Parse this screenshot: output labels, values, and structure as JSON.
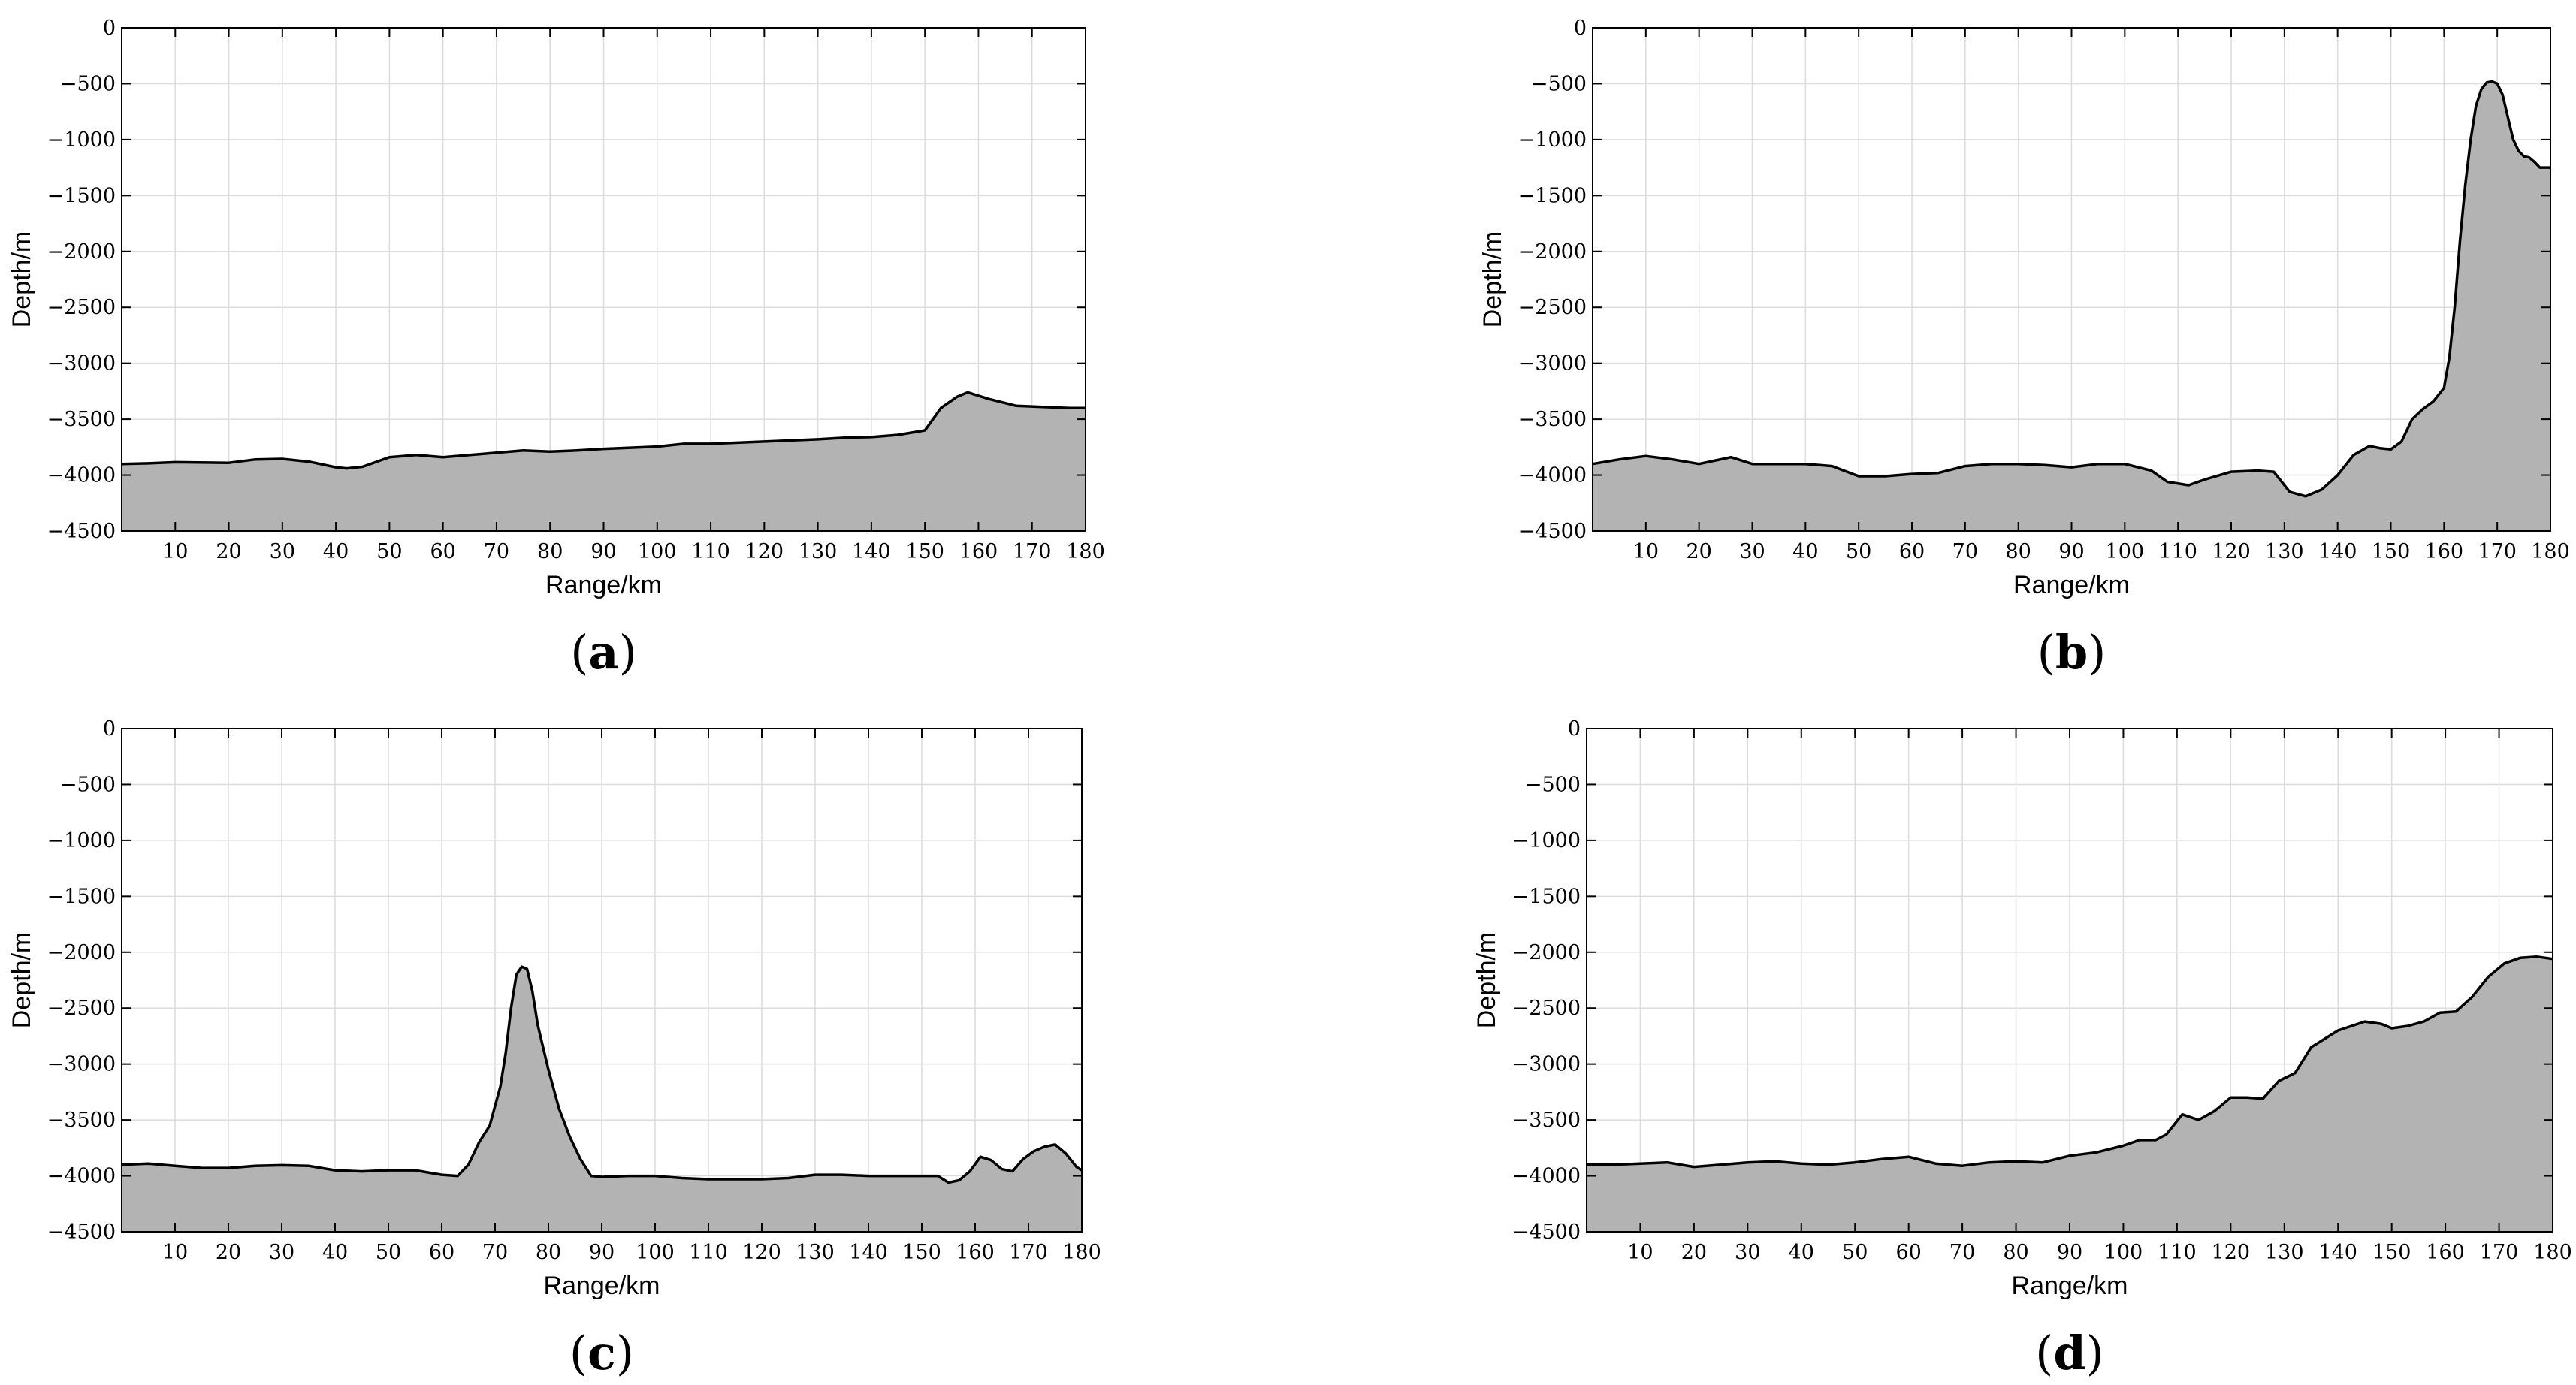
{
  "chart_data": [
    {
      "type": "area",
      "panel_label": "a",
      "xlabel": "Range/km",
      "ylabel": "Depth/m",
      "xlim": [
        0,
        180
      ],
      "ylim": [
        -4500,
        0
      ],
      "xticks": [
        10,
        20,
        30,
        40,
        50,
        60,
        70,
        80,
        90,
        100,
        110,
        120,
        130,
        140,
        150,
        160,
        170,
        180
      ],
      "yticks": [
        0,
        -500,
        -1000,
        -1500,
        -2000,
        -2500,
        -3000,
        -3500,
        -4000,
        -4500
      ],
      "grid": true,
      "x": [
        0,
        5,
        10,
        20,
        25,
        30,
        35,
        40,
        42,
        45,
        50,
        55,
        60,
        65,
        70,
        75,
        80,
        85,
        90,
        95,
        100,
        105,
        110,
        115,
        120,
        125,
        130,
        135,
        140,
        145,
        150,
        153,
        156,
        158,
        162,
        167,
        172,
        177,
        180
      ],
      "y": [
        -3900,
        -3895,
        -3885,
        -3890,
        -3860,
        -3855,
        -3880,
        -3930,
        -3940,
        -3925,
        -3840,
        -3820,
        -3840,
        -3820,
        -3800,
        -3780,
        -3790,
        -3780,
        -3765,
        -3755,
        -3745,
        -3720,
        -3720,
        -3710,
        -3700,
        -3690,
        -3680,
        -3665,
        -3660,
        -3640,
        -3600,
        -3400,
        -3300,
        -3260,
        -3320,
        -3380,
        -3390,
        -3400,
        -3400
      ]
    },
    {
      "type": "area",
      "panel_label": "b",
      "xlabel": "Range/km",
      "ylabel": "Depth/m",
      "xlim": [
        0,
        180
      ],
      "ylim": [
        -4500,
        0
      ],
      "xticks": [
        10,
        20,
        30,
        40,
        50,
        60,
        70,
        80,
        90,
        100,
        110,
        120,
        130,
        140,
        150,
        160,
        170,
        180
      ],
      "yticks": [
        0,
        -500,
        -1000,
        -1500,
        -2000,
        -2500,
        -3000,
        -3500,
        -4000,
        -4500
      ],
      "grid": true,
      "x": [
        0,
        5,
        10,
        15,
        20,
        26,
        30,
        35,
        40,
        45,
        50,
        55,
        60,
        65,
        70,
        75,
        80,
        85,
        90,
        95,
        100,
        105,
        108,
        112,
        115,
        120,
        125,
        128,
        131,
        134,
        137,
        140,
        143,
        146,
        148,
        150,
        152,
        154,
        156,
        158,
        160,
        161,
        162,
        163,
        164,
        165,
        166,
        167,
        168,
        169,
        170,
        171,
        172,
        173,
        174,
        175,
        176,
        177,
        178,
        180
      ],
      "y": [
        -3900,
        -3860,
        -3830,
        -3860,
        -3900,
        -3840,
        -3900,
        -3900,
        -3900,
        -3920,
        -4010,
        -4010,
        -3990,
        -3980,
        -3920,
        -3900,
        -3900,
        -3910,
        -3930,
        -3900,
        -3900,
        -3960,
        -4060,
        -4090,
        -4040,
        -3970,
        -3960,
        -3970,
        -4150,
        -4190,
        -4130,
        -4000,
        -3820,
        -3740,
        -3760,
        -3770,
        -3700,
        -3500,
        -3410,
        -3340,
        -3220,
        -2950,
        -2500,
        -1900,
        -1400,
        -1000,
        -700,
        -550,
        -490,
        -480,
        -500,
        -600,
        -800,
        -1000,
        -1100,
        -1150,
        -1160,
        -1200,
        -1250,
        -1250
      ]
    },
    {
      "type": "area",
      "panel_label": "c",
      "xlabel": "Range/km",
      "ylabel": "Depth/m",
      "xlim": [
        0,
        180
      ],
      "ylim": [
        -4500,
        0
      ],
      "xticks": [
        10,
        20,
        30,
        40,
        50,
        60,
        70,
        80,
        90,
        100,
        110,
        120,
        130,
        140,
        150,
        160,
        170,
        180
      ],
      "yticks": [
        0,
        -500,
        -1000,
        -1500,
        -2000,
        -2500,
        -3000,
        -3500,
        -4000,
        -4500
      ],
      "grid": true,
      "x": [
        0,
        5,
        10,
        15,
        20,
        25,
        30,
        35,
        40,
        45,
        50,
        55,
        60,
        63,
        65,
        67,
        69,
        71,
        72,
        73,
        74,
        75,
        76,
        77,
        78,
        80,
        82,
        84,
        86,
        88,
        90,
        95,
        100,
        105,
        110,
        115,
        120,
        125,
        130,
        135,
        140,
        145,
        150,
        153,
        155,
        157,
        159,
        161,
        163,
        165,
        167,
        169,
        171,
        173,
        175,
        177,
        179,
        180
      ],
      "y": [
        -3900,
        -3890,
        -3910,
        -3930,
        -3930,
        -3910,
        -3905,
        -3910,
        -3950,
        -3960,
        -3950,
        -3950,
        -3990,
        -4000,
        -3900,
        -3700,
        -3550,
        -3200,
        -2900,
        -2500,
        -2200,
        -2130,
        -2150,
        -2350,
        -2650,
        -3050,
        -3400,
        -3650,
        -3850,
        -4000,
        -4010,
        -4000,
        -4000,
        -4020,
        -4030,
        -4030,
        -4030,
        -4020,
        -3990,
        -3990,
        -4000,
        -4000,
        -4000,
        -4000,
        -4060,
        -4040,
        -3960,
        -3830,
        -3860,
        -3940,
        -3960,
        -3850,
        -3780,
        -3740,
        -3720,
        -3800,
        -3920,
        -3950
      ]
    },
    {
      "type": "area",
      "panel_label": "d",
      "xlabel": "Range/km",
      "ylabel": "Depth/m",
      "xlim": [
        0,
        180
      ],
      "ylim": [
        -4500,
        0
      ],
      "xticks": [
        10,
        20,
        30,
        40,
        50,
        60,
        70,
        80,
        90,
        100,
        110,
        120,
        130,
        140,
        150,
        160,
        170,
        180
      ],
      "yticks": [
        0,
        -500,
        -1000,
        -1500,
        -2000,
        -2500,
        -3000,
        -3500,
        -4000,
        -4500
      ],
      "grid": true,
      "x": [
        0,
        5,
        10,
        15,
        20,
        25,
        30,
        35,
        40,
        45,
        50,
        55,
        60,
        65,
        70,
        75,
        80,
        85,
        90,
        95,
        100,
        103,
        106,
        108,
        111,
        114,
        117,
        120,
        123,
        126,
        129,
        132,
        135,
        140,
        145,
        148,
        150,
        153,
        156,
        159,
        162,
        165,
        168,
        171,
        174,
        177,
        180
      ],
      "y": [
        -3900,
        -3900,
        -3890,
        -3880,
        -3920,
        -3900,
        -3880,
        -3870,
        -3890,
        -3900,
        -3880,
        -3850,
        -3830,
        -3890,
        -3910,
        -3880,
        -3870,
        -3880,
        -3820,
        -3790,
        -3730,
        -3680,
        -3680,
        -3630,
        -3450,
        -3500,
        -3420,
        -3300,
        -3300,
        -3310,
        -3150,
        -3080,
        -2850,
        -2700,
        -2620,
        -2640,
        -2680,
        -2660,
        -2620,
        -2540,
        -2530,
        -2400,
        -2220,
        -2100,
        -2050,
        -2040,
        -2060
      ]
    }
  ]
}
